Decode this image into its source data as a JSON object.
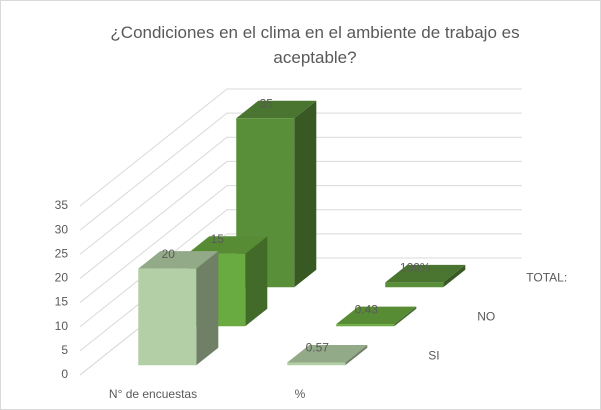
{
  "chart_data": {
    "type": "bar3d",
    "title": "¿Condiciones en el clima en el ambiente de trabajo es aceptable?",
    "categories": [
      "N° de encuestas",
      "%"
    ],
    "series": [
      {
        "name": "SI",
        "color": "#b3cfa6",
        "values": [
          20,
          0.57
        ]
      },
      {
        "name": "NO",
        "color": "#6aab41",
        "values": [
          15,
          0.43
        ]
      },
      {
        "name": "TOTAL:",
        "color": "#5a8f3a",
        "values": [
          35,
          1
        ],
        "value_labels": [
          "35",
          "100%"
        ]
      }
    ],
    "ylim": [
      0,
      35
    ],
    "yticks": [
      0,
      5,
      10,
      15,
      20,
      25,
      30,
      35
    ],
    "grid": true
  }
}
